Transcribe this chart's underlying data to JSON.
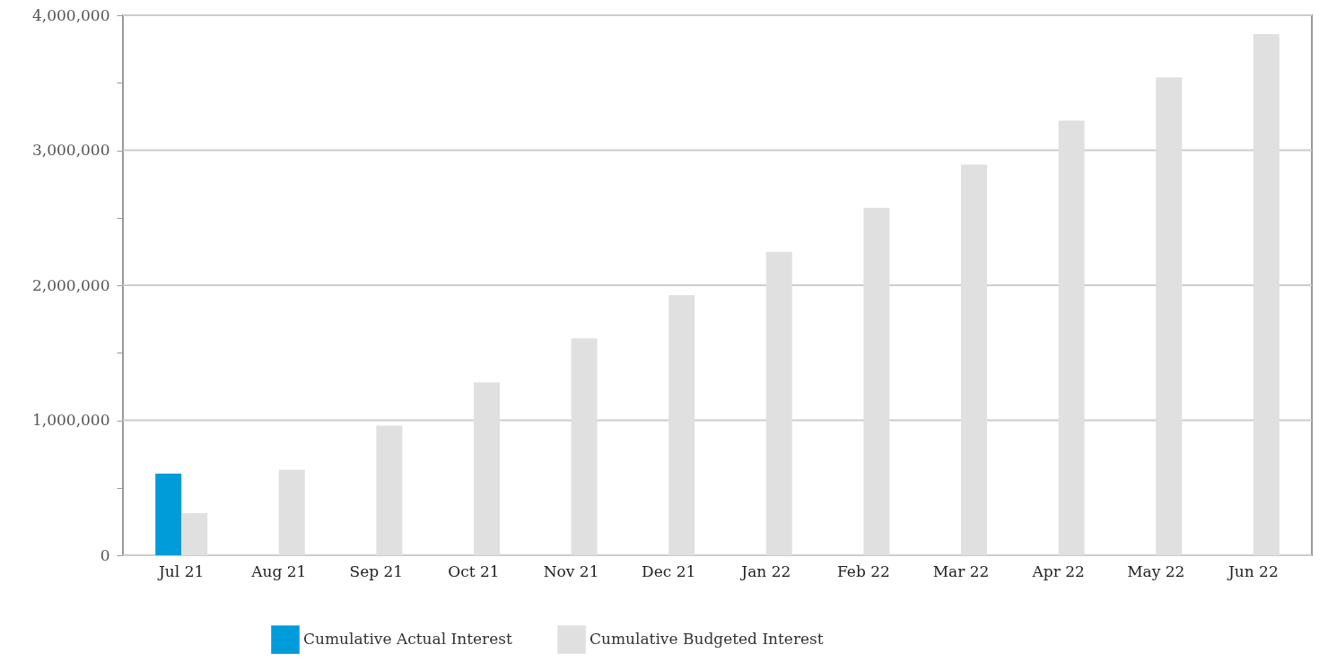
{
  "chart_data": {
    "type": "bar",
    "categories": [
      "Jul 21",
      "Aug 21",
      "Sep 21",
      "Oct 21",
      "Nov 21",
      "Dec 21",
      "Jan 22",
      "Feb 22",
      "Mar 22",
      "Apr 22",
      "May 22",
      "Jun 22"
    ],
    "series": [
      {
        "name": "Cumulative Actual Interest",
        "color": "#009cd9",
        "values": [
          605000,
          null,
          null,
          null,
          null,
          null,
          null,
          null,
          null,
          null,
          null,
          null
        ]
      },
      {
        "name": "Cumulative Budgeted Interest",
        "color": "#e0e0e0",
        "values": [
          313000,
          633000,
          960000,
          1280000,
          1607000,
          1927000,
          2247000,
          2573000,
          2893000,
          3220000,
          3540000,
          3860000
        ]
      }
    ],
    "ylim": [
      0,
      4000000
    ],
    "yticks": [
      0,
      {
        "value": 500000,
        "label": null
      },
      {
        "value": 1000000,
        "label": "1,000,000"
      },
      {
        "value": 1500000,
        "label": null
      },
      {
        "value": 2000000,
        "label": "2,000,000"
      },
      {
        "value": 2500000,
        "label": null
      },
      {
        "value": 3000000,
        "label": "3,000,000"
      },
      {
        "value": 3500000,
        "label": null
      },
      {
        "value": 4000000,
        "label": "4,000,000"
      }
    ],
    "grid": "y",
    "legend": "bottom"
  }
}
